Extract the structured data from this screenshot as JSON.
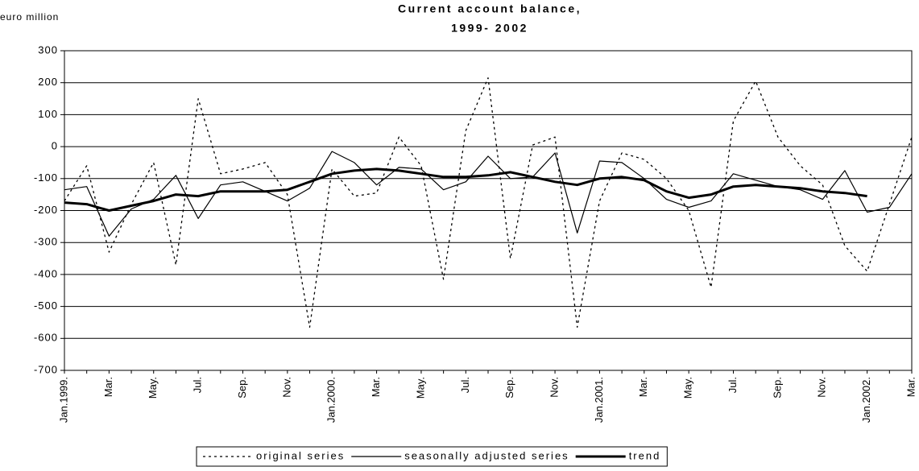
{
  "chart_data": {
    "type": "line",
    "title": "Current account balance,",
    "subtitle": "1999- 2002",
    "y_label": "euro million",
    "categories": [
      "Jan.1999.",
      null,
      "Mar.",
      null,
      "May.",
      null,
      "Jul.",
      null,
      "Sep.",
      null,
      "Nov.",
      null,
      "Jan.2000.",
      null,
      "Mar.",
      null,
      "May.",
      null,
      "Jul.",
      null,
      "Sep.",
      null,
      "Nov.",
      null,
      "Jan.2001.",
      null,
      "Mar.",
      null,
      "May.",
      null,
      "Jul.",
      null,
      "Sep.",
      null,
      "Nov.",
      null,
      "Jan.2002.",
      null,
      "Mar."
    ],
    "series": [
      {
        "name": "original series",
        "color": "#000000",
        "style": "dotted",
        "width": 1.3,
        "values": [
          -170,
          -60,
          -330,
          -180,
          -50,
          -370,
          150,
          -85,
          -70,
          -50,
          -150,
          -565,
          -70,
          -155,
          -145,
          30,
          -60,
          -415,
          50,
          215,
          -350,
          5,
          30,
          -565,
          -170,
          -20,
          -40,
          -100,
          -200,
          -440,
          80,
          205,
          30,
          -60,
          -120,
          -310,
          -390,
          -180,
          30
        ]
      },
      {
        "name": "seasonally adjusted series",
        "color": "#000000",
        "style": "solid",
        "width": 1.2,
        "values": [
          -135,
          -125,
          -280,
          -195,
          -165,
          -90,
          -225,
          -120,
          -110,
          -140,
          -170,
          -130,
          -15,
          -50,
          -120,
          -65,
          -70,
          -135,
          -110,
          -30,
          -100,
          -95,
          -20,
          -270,
          -45,
          -50,
          -100,
          -165,
          -190,
          -170,
          -85,
          -105,
          -125,
          -135,
          -165,
          -75,
          -205,
          -190,
          -85
        ]
      },
      {
        "name": "trend",
        "color": "#000000",
        "style": "solid",
        "width": 3,
        "values": [
          -175,
          -180,
          -200,
          -185,
          -170,
          -150,
          -155,
          -140,
          -140,
          -140,
          -135,
          -110,
          -85,
          -75,
          -70,
          -75,
          -85,
          -95,
          -95,
          -90,
          -80,
          -95,
          -110,
          -120,
          -100,
          -95,
          -105,
          -140,
          -160,
          -150,
          -125,
          -120,
          -125,
          -130,
          -140,
          -145,
          -155,
          null,
          null
        ]
      }
    ],
    "ylim": [
      -700,
      300
    ],
    "yticks": [
      -700,
      -600,
      -500,
      -400,
      -300,
      -200,
      -100,
      0,
      100,
      200,
      300
    ],
    "grid": true,
    "legend": "bottom"
  }
}
